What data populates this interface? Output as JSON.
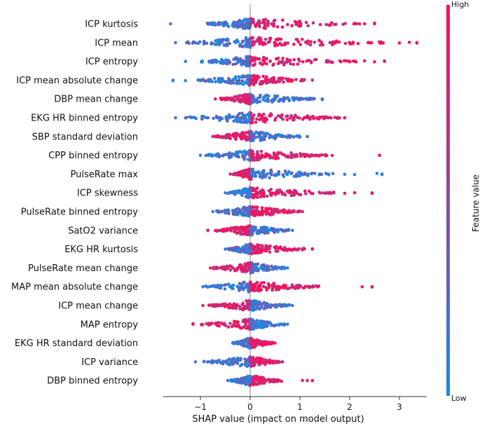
{
  "chart_data": {
    "type": "scatter",
    "subtype": "shap-beeswarm-summary",
    "xlabel": "SHAP value (impact on model output)",
    "xlim": [
      -1.75,
      3.55
    ],
    "xticks": [
      -1,
      0,
      1,
      2,
      3
    ],
    "colorbar": {
      "label": "Feature value",
      "high_label": "High",
      "low_label": "Low",
      "low_color": "#1E88E5",
      "high_color": "#FF0D57"
    },
    "features": [
      {
        "name": "ICP kurtosis",
        "min": -1.6,
        "max": 2.5,
        "core_lo": -0.9,
        "core_hi": 2.2,
        "neg_feature": "low",
        "outliers": [
          2.1,
          2.2,
          2.3,
          2.5
        ]
      },
      {
        "name": "ICP mean",
        "min": -1.5,
        "max": 3.35,
        "core_lo": -1.3,
        "core_hi": 2.8,
        "neg_feature": "low",
        "outliers": [
          3.0,
          3.2,
          3.35
        ]
      },
      {
        "name": "ICP entropy",
        "min": -1.3,
        "max": 2.7,
        "core_lo": -1.0,
        "core_hi": 2.2,
        "neg_feature": "low",
        "outliers": [
          2.3,
          2.5,
          2.7
        ]
      },
      {
        "name": "ICP mean absolute change",
        "min": -1.55,
        "max": 1.25,
        "core_lo": -1.1,
        "core_hi": 1.1,
        "neg_feature": "low",
        "outliers": [
          -1.55,
          -1.3
        ]
      },
      {
        "name": "DBP mean change",
        "min": -0.7,
        "max": 1.45,
        "core_lo": -0.6,
        "core_hi": 1.3,
        "neg_feature": "high",
        "outliers": [
          1.45
        ]
      },
      {
        "name": "EKG HR binned entropy",
        "min": -1.5,
        "max": 1.9,
        "core_lo": -1.3,
        "core_hi": 1.8,
        "neg_feature": "low",
        "outliers": [
          1.9
        ]
      },
      {
        "name": "SBP standard deviation",
        "min": -0.75,
        "max": 1.15,
        "core_lo": -0.7,
        "core_hi": 1.0,
        "neg_feature": "high",
        "outliers": [
          1.15
        ]
      },
      {
        "name": "CPP binned entropy",
        "min": -1.0,
        "max": 2.6,
        "core_lo": -0.9,
        "core_hi": 1.55,
        "neg_feature": "low",
        "outliers": [
          1.65,
          2.6
        ]
      },
      {
        "name": "PulseRate max",
        "min": -0.4,
        "max": 2.65,
        "core_lo": -0.35,
        "core_hi": 1.7,
        "neg_feature": "high",
        "outliers": [
          1.9,
          2.1,
          2.55,
          2.65
        ]
      },
      {
        "name": "ICP skewness",
        "min": -0.5,
        "max": 2.45,
        "core_lo": -0.45,
        "core_hi": 1.7,
        "neg_feature": "low",
        "outliers": [
          1.9,
          2.1,
          2.45
        ]
      },
      {
        "name": "PulseRate binned entropy",
        "min": -0.75,
        "max": 1.05,
        "core_lo": -0.7,
        "core_hi": 1.0,
        "neg_feature": "low",
        "outliers": []
      },
      {
        "name": "SatO2 variance",
        "min": -0.85,
        "max": 0.85,
        "core_lo": -0.7,
        "core_hi": 0.8,
        "neg_feature": "high",
        "outliers": [
          -0.85
        ]
      },
      {
        "name": "EKG HR kurtosis",
        "min": -0.5,
        "max": 1.25,
        "core_lo": -0.45,
        "core_hi": 1.1,
        "neg_feature": "low",
        "outliers": [
          1.25
        ]
      },
      {
        "name": "PulseRate mean change",
        "min": -0.8,
        "max": 0.75,
        "core_lo": -0.75,
        "core_hi": 0.7,
        "neg_feature": "high",
        "outliers": []
      },
      {
        "name": "MAP mean absolute change",
        "min": -0.95,
        "max": 2.45,
        "core_lo": -0.9,
        "core_hi": 1.4,
        "neg_feature": "low",
        "outliers": [
          2.25,
          2.45
        ]
      },
      {
        "name": "ICP mean change",
        "min": -0.95,
        "max": 0.85,
        "core_lo": -0.85,
        "core_hi": 0.8,
        "neg_feature": "high",
        "outliers": []
      },
      {
        "name": "MAP entropy",
        "min": -1.15,
        "max": 0.75,
        "core_lo": -1.0,
        "core_hi": 0.7,
        "neg_feature": "high",
        "outliers": [
          -1.15
        ]
      },
      {
        "name": "EKG HR standard deviation",
        "min": -0.35,
        "max": 0.5,
        "core_lo": -0.35,
        "core_hi": 0.45,
        "neg_feature": "low",
        "outliers": []
      },
      {
        "name": "ICP variance",
        "min": -1.1,
        "max": 0.65,
        "core_lo": -1.0,
        "core_hi": 0.6,
        "neg_feature": "low",
        "outliers": []
      },
      {
        "name": "DBP binned entropy",
        "min": -0.45,
        "max": 1.25,
        "core_lo": -0.4,
        "core_hi": 0.65,
        "neg_feature": "low",
        "outliers": [
          1.05,
          1.15,
          1.25
        ]
      }
    ]
  }
}
